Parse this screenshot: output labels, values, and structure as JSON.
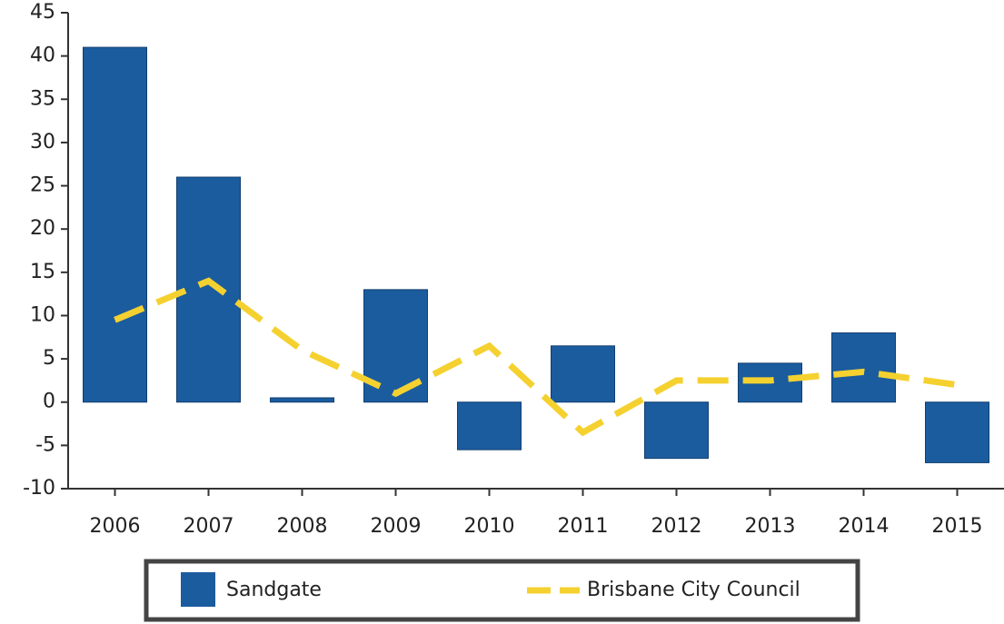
{
  "chart_data": {
    "type": "bar",
    "categories": [
      "2006",
      "2007",
      "2008",
      "2009",
      "2010",
      "2011",
      "2012",
      "2013",
      "2014",
      "2015"
    ],
    "series": [
      {
        "name": "Sandgate",
        "type": "bar",
        "color": "#1b5c9e",
        "values": [
          41,
          26,
          0.5,
          13,
          -5.5,
          6.5,
          -6.5,
          4.5,
          8,
          -7
        ]
      },
      {
        "name": "Brisbane City Council",
        "type": "line",
        "color": "#f5d130",
        "values": [
          9.5,
          14,
          6,
          1,
          6.5,
          -3.5,
          2.5,
          2.5,
          3.5,
          2
        ]
      }
    ],
    "ylim": [
      -10,
      45
    ],
    "yticks": [
      -10,
      -5,
      0,
      5,
      10,
      15,
      20,
      25,
      30,
      35,
      40,
      45
    ],
    "grid": false,
    "legend": "bottom"
  }
}
